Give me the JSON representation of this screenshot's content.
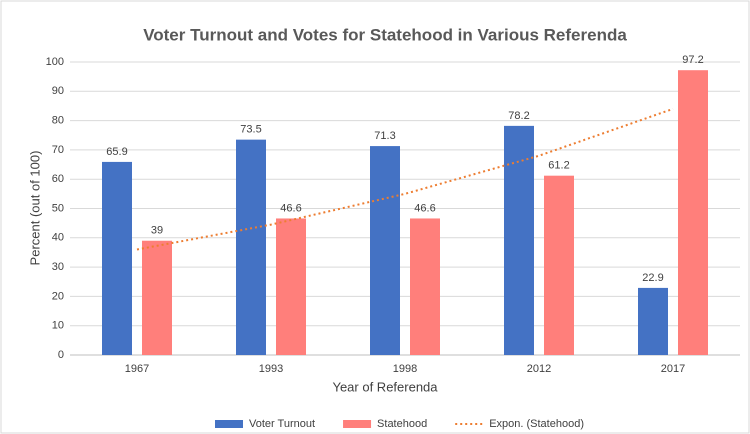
{
  "chart_data": {
    "type": "bar",
    "title": "Voter Turnout and Votes for Statehood in Various Referenda",
    "x_label": "Year of Referenda",
    "y_label": "Percent (out of 100)",
    "categories": [
      "1967",
      "1993",
      "1998",
      "2012",
      "2017"
    ],
    "series": [
      {
        "name": "Voter Turnout",
        "color": "#4472c4",
        "values": [
          65.9,
          73.5,
          71.3,
          78.2,
          22.9
        ]
      },
      {
        "name": "Statehood",
        "color": "#ff7f7b",
        "values": [
          39,
          46.6,
          46.6,
          61.2,
          97.2
        ]
      }
    ],
    "trendline": {
      "name": "Expon. (Statehood)",
      "color": "#ed7d31",
      "values": [
        36,
        44.5,
        55,
        68,
        84
      ]
    },
    "ylim": [
      0,
      100
    ],
    "yticks": [
      0,
      10,
      20,
      30,
      40,
      50,
      60,
      70,
      80,
      90,
      100
    ],
    "grid": true,
    "legend": "bottom"
  }
}
